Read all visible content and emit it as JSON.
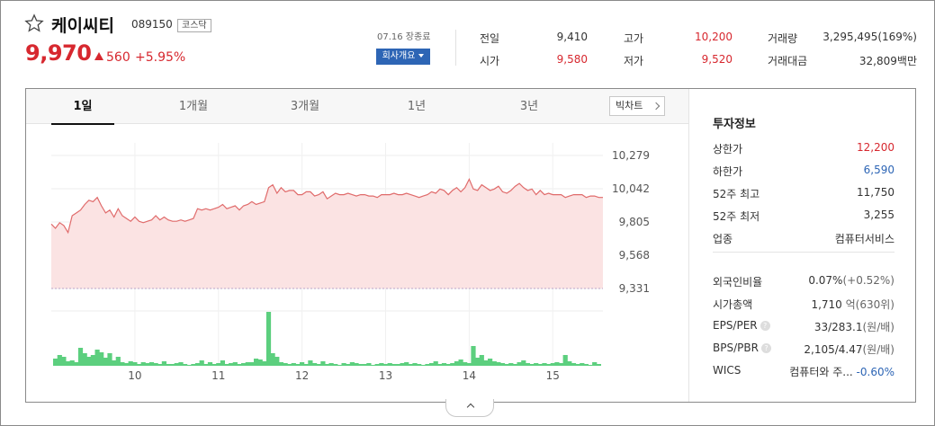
{
  "stock": {
    "name": "케이씨티",
    "code": "089150",
    "market": "코스닥",
    "price": "9,970",
    "change": "560",
    "change_pct": "+5.95%",
    "close_time": "07.16 장종료",
    "company_button": "회사개요"
  },
  "quote": {
    "prev_label": "전일",
    "prev": "9,410",
    "high_label": "고가",
    "high": "10,200",
    "volume_label": "거래량",
    "volume": "3,295,495(169%)",
    "open_label": "시가",
    "open": "9,580",
    "low_label": "저가",
    "low": "9,520",
    "amount_label": "거래대금",
    "amount": "32,809",
    "amount_unit": "백만"
  },
  "tabs": [
    "1일",
    "1개월",
    "3개월",
    "1년",
    "3년"
  ],
  "bigchart_label": "빅차트",
  "colors": {
    "up": "#d7282f",
    "down": "#2d65b5",
    "line": "#e06b6b",
    "area": "#fbe3e3",
    "volume": "#5ccf7e"
  },
  "chart_data": {
    "type": "area",
    "title": "",
    "xlabel": "",
    "ylabel": "",
    "y_ticks": [
      "10,279",
      "10,042",
      "9,805",
      "9,568",
      "9,331"
    ],
    "y_tick_values": [
      10279,
      10042,
      9805,
      9568,
      9331
    ],
    "ylim": [
      9331,
      10279
    ],
    "x_labels": [
      "10",
      "11",
      "12",
      "13",
      "14",
      "15"
    ],
    "xlim": [
      9.0,
      15.6
    ],
    "grid": true,
    "price": {
      "x": [
        9.0,
        9.05,
        9.1,
        9.15,
        9.2,
        9.25,
        9.3,
        9.35,
        9.4,
        9.45,
        9.5,
        9.55,
        9.6,
        9.65,
        9.7,
        9.75,
        9.8,
        9.85,
        9.9,
        9.95,
        10.0,
        10.05,
        10.1,
        10.15,
        10.2,
        10.25,
        10.3,
        10.35,
        10.4,
        10.45,
        10.5,
        10.55,
        10.6,
        10.65,
        10.7,
        10.75,
        10.8,
        10.85,
        10.9,
        10.95,
        11.0,
        11.05,
        11.1,
        11.15,
        11.2,
        11.25,
        11.3,
        11.35,
        11.4,
        11.45,
        11.5,
        11.55,
        11.6,
        11.65,
        11.7,
        11.75,
        11.8,
        11.85,
        11.9,
        11.95,
        12.0,
        12.05,
        12.1,
        12.15,
        12.2,
        12.25,
        12.3,
        12.35,
        12.4,
        12.45,
        12.5,
        12.55,
        12.6,
        12.65,
        12.7,
        12.75,
        12.8,
        12.85,
        12.9,
        12.95,
        13.0,
        13.05,
        13.1,
        13.15,
        13.2,
        13.25,
        13.3,
        13.35,
        13.4,
        13.45,
        13.5,
        13.55,
        13.6,
        13.65,
        13.7,
        13.75,
        13.8,
        13.85,
        13.9,
        13.95,
        14.0,
        14.05,
        14.1,
        14.15,
        14.2,
        14.25,
        14.3,
        14.35,
        14.4,
        14.45,
        14.5,
        14.55,
        14.6,
        14.65,
        14.7,
        14.75,
        14.8,
        14.85,
        14.9,
        14.95,
        15.0,
        15.05,
        15.1,
        15.15,
        15.2,
        15.25,
        15.3,
        15.35,
        15.4,
        15.45,
        15.5,
        15.55,
        15.6
      ],
      "y": [
        9790,
        9760,
        9800,
        9780,
        9730,
        9850,
        9870,
        9890,
        9930,
        9960,
        9950,
        9980,
        9920,
        9870,
        9890,
        9840,
        9900,
        9850,
        9830,
        9810,
        9840,
        9810,
        9800,
        9810,
        9820,
        9850,
        9820,
        9840,
        9820,
        9810,
        9810,
        9820,
        9810,
        9820,
        9830,
        9900,
        9890,
        9900,
        9890,
        9900,
        9910,
        9930,
        9900,
        9910,
        9920,
        9890,
        9920,
        9930,
        9950,
        9930,
        9940,
        9950,
        10050,
        10070,
        10010,
        10050,
        10020,
        10030,
        10030,
        10000,
        10000,
        10020,
        10020,
        9990,
        10000,
        10020,
        9970,
        9990,
        10010,
        10000,
        10000,
        10010,
        10000,
        9990,
        10000,
        10000,
        9990,
        9990,
        9980,
        10000,
        10000,
        10000,
        10010,
        10000,
        10000,
        10010,
        10000,
        9990,
        9980,
        9990,
        10000,
        10020,
        10010,
        10040,
        10030,
        10000,
        10030,
        10050,
        10020,
        10050,
        10110,
        10040,
        10030,
        10070,
        10050,
        10030,
        10040,
        10060,
        10020,
        10010,
        10030,
        10060,
        10080,
        10050,
        10030,
        10040,
        10000,
        10030,
        10000,
        10010,
        10000,
        10000,
        10000,
        9980,
        9990,
        10000,
        10000,
        10000,
        9980,
        9990,
        9990,
        9980,
        9980
      ]
    },
    "volume": {
      "x": [
        9.05,
        9.1,
        9.15,
        9.2,
        9.25,
        9.3,
        9.35,
        9.4,
        9.45,
        9.5,
        9.55,
        9.6,
        9.65,
        9.7,
        9.75,
        9.8,
        9.85,
        9.9,
        9.95,
        10.0,
        10.05,
        10.1,
        10.15,
        10.2,
        10.25,
        10.3,
        10.35,
        10.4,
        10.45,
        10.5,
        10.55,
        10.6,
        10.65,
        10.7,
        10.75,
        10.8,
        10.85,
        10.9,
        10.95,
        11.0,
        11.05,
        11.1,
        11.15,
        11.2,
        11.25,
        11.3,
        11.35,
        11.4,
        11.45,
        11.5,
        11.55,
        11.6,
        11.65,
        11.7,
        11.75,
        11.8,
        11.85,
        11.9,
        11.95,
        12.0,
        12.05,
        12.1,
        12.15,
        12.2,
        12.25,
        12.3,
        12.35,
        12.4,
        12.45,
        12.5,
        12.55,
        12.6,
        12.65,
        12.7,
        12.75,
        12.8,
        12.85,
        12.9,
        12.95,
        13.0,
        13.05,
        13.1,
        13.15,
        13.2,
        13.25,
        13.3,
        13.35,
        13.4,
        13.45,
        13.5,
        13.55,
        13.6,
        13.65,
        13.7,
        13.75,
        13.8,
        13.85,
        13.9,
        13.95,
        14.0,
        14.05,
        14.1,
        14.15,
        14.2,
        14.25,
        14.3,
        14.35,
        14.4,
        14.45,
        14.5,
        14.55,
        14.6,
        14.65,
        14.7,
        14.75,
        14.8,
        14.85,
        14.9,
        14.95,
        15.0,
        15.05,
        15.1,
        15.15,
        15.2,
        15.25,
        15.3,
        15.35,
        15.4,
        15.45,
        15.5,
        15.55
      ],
      "values": [
        8,
        12,
        10,
        5,
        6,
        4,
        20,
        14,
        10,
        12,
        18,
        15,
        9,
        14,
        6,
        10,
        4,
        3,
        5,
        4,
        2,
        4,
        3,
        4,
        3,
        2,
        5,
        2,
        2,
        3,
        4,
        2,
        1,
        2,
        3,
        6,
        2,
        4,
        2,
        3,
        6,
        2,
        3,
        4,
        2,
        3,
        4,
        4,
        8,
        7,
        5,
        60,
        14,
        10,
        4,
        3,
        2,
        3,
        2,
        4,
        2,
        6,
        3,
        2,
        5,
        2,
        3,
        2,
        1,
        3,
        2,
        4,
        3,
        2,
        2,
        3,
        1,
        2,
        3,
        2,
        3,
        2,
        2,
        3,
        4,
        2,
        3,
        2,
        1,
        2,
        3,
        5,
        2,
        3,
        2,
        3,
        5,
        7,
        4,
        3,
        22,
        9,
        12,
        6,
        8,
        5,
        4,
        3,
        2,
        3,
        2,
        4,
        6,
        3,
        2,
        3,
        2,
        3,
        2,
        3,
        4,
        3,
        12,
        5,
        3,
        2,
        3,
        2,
        1,
        4,
        2
      ]
    }
  },
  "invest": {
    "title": "투자정보",
    "upper_limit_label": "상한가",
    "upper_limit": "12,200",
    "lower_limit_label": "하한가",
    "lower_limit": "6,590",
    "w52_high_label": "52주 최고",
    "w52_high": "11,750",
    "w52_low_label": "52주 최저",
    "w52_low": "3,255",
    "sector_label": "업종",
    "sector": "컴퓨터서비스",
    "foreign_label": "외국인비율",
    "foreign": "0.07%",
    "foreign_sub": "(+0.52%)",
    "mcap_label": "시가총액",
    "mcap": "1,710",
    "mcap_sub": "억(630위)",
    "eps_label": "EPS/PER",
    "eps": "33/283.1",
    "eps_sub": "(원/배)",
    "bps_label": "BPS/PBR",
    "bps": "2,105/4.47",
    "bps_sub": "(원/배)",
    "wics_label": "WICS",
    "wics": "컴퓨터와 주...",
    "wics_pct": "-0.60%",
    "help_glyph": "?"
  }
}
